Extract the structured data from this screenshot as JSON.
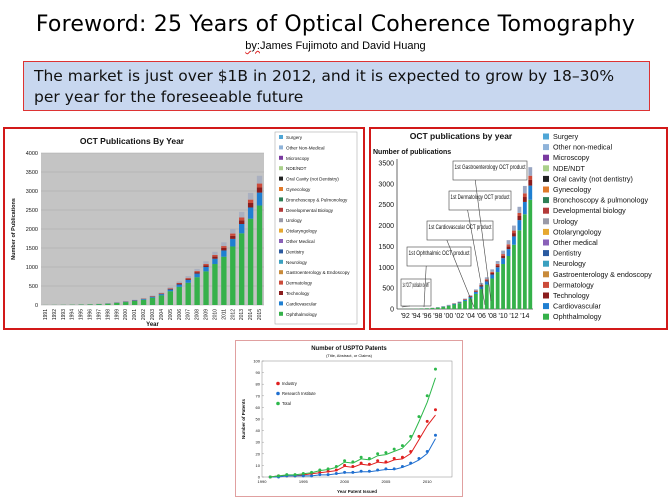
{
  "slide": {
    "title": "Foreword: 25 Years of Optical Coherence Tomography",
    "byline_by": "by:",
    "byline_rest": "James Fujimoto and David Huang",
    "market_text": "The market is just over $1B in 2012, and it is expected to grow by 18–30% per year for the foreseeable future"
  },
  "colors": {
    "border_red": "#d21919",
    "box_blue": "#c8d7ef",
    "ophthalmology": "#35b14a",
    "cardiovascular": "#1f7fd1",
    "technology": "#8b1d1d",
    "surgery": "#4fa6d6"
  },
  "chart_data": [
    {
      "type": "bar",
      "stacked": true,
      "title": "OCT Publications By Year",
      "xlabel": "Year",
      "ylabel": "Number of Publications",
      "ylim": [
        0,
        4000
      ],
      "yticks": [
        0,
        500,
        1000,
        1500,
        2000,
        2500,
        3000,
        3500,
        4000
      ],
      "grid": true,
      "legend_position": "right",
      "categories": [
        "1991",
        "1992",
        "1993",
        "1994",
        "1995",
        "1996",
        "1997",
        "1998",
        "1999",
        "2000",
        "2001",
        "2002",
        "2003",
        "2004",
        "2005",
        "2006",
        "2007",
        "2008",
        "2009",
        "2010",
        "2011",
        "2012",
        "2013",
        "2014",
        "2015"
      ],
      "totals": [
        2,
        4,
        6,
        10,
        15,
        20,
        30,
        45,
        70,
        100,
        140,
        180,
        250,
        330,
        470,
        620,
        760,
        950,
        1150,
        1400,
        1650,
        2000,
        2450,
        2950,
        3400
      ],
      "legend": [
        "Surgery",
        "Other Non-Medical",
        "Microscopy",
        "NDE/NDT",
        "Oral Cavity (not Dentistry)",
        "Gynecology",
        "Bronchoscopy & Pulmonology",
        "Developmental Biology",
        "Urology",
        "Otolaryngology",
        "Other Medical",
        "Dentistry",
        "Neurology",
        "Gastroenterology & Endoscopy",
        "Dermatology",
        "Technology",
        "Cardiovascular",
        "Ophthalmology"
      ]
    },
    {
      "type": "bar",
      "stacked": true,
      "title": "OCT publications by year",
      "ylabel": "Number of publications",
      "ylim": [
        0,
        3500
      ],
      "yticks": [
        0,
        500,
        1000,
        1500,
        2000,
        2500,
        3000,
        3500
      ],
      "xticklabels": [
        "'92",
        "'94",
        "'96",
        "'98",
        "'00",
        "'02",
        "'04",
        "'06",
        "'08",
        "'10",
        "'12",
        "'14"
      ],
      "grid": false,
      "legend_position": "right",
      "categories": [
        "1991",
        "1992",
        "1993",
        "1994",
        "1995",
        "1996",
        "1997",
        "1998",
        "1999",
        "2000",
        "2001",
        "2002",
        "2003",
        "2004",
        "2005",
        "2006",
        "2007",
        "2008",
        "2009",
        "2010",
        "2011",
        "2012",
        "2013",
        "2014",
        "2015"
      ],
      "totals": [
        2,
        4,
        6,
        10,
        15,
        20,
        30,
        45,
        70,
        100,
        140,
        180,
        250,
        330,
        470,
        620,
        760,
        950,
        1150,
        1400,
        1650,
        2000,
        2450,
        2950,
        3400
      ],
      "annotations": [
        {
          "label": "1st \"OCT\" publication by MIT",
          "year": "1991"
        },
        {
          "label": "1st Ophthalmic OCT product",
          "year": "1996"
        },
        {
          "label": "1st Cardiovascular OCT product",
          "year": "2004"
        },
        {
          "label": "1st Dermatology OCT product",
          "year": "2006"
        },
        {
          "label": "1st Gastroenterology OCT product",
          "year": "2007"
        }
      ],
      "legend": [
        "Surgery",
        "Other non-medical",
        "Microscopy",
        "NDE/NDT",
        "Oral cavity (not dentistry)",
        "Gynecology",
        "Bronchoscopy & pulmonology",
        "Developmental biology",
        "Urology",
        "Otolaryngology",
        "Other medical",
        "Dentistry",
        "Neurology",
        "Gastroenterology & endoscopy",
        "Dermatology",
        "Technology",
        "Cardiovascular",
        "Ophthalmology"
      ]
    },
    {
      "type": "scatter",
      "title": "Number of USPTO Patents",
      "subtitle": "(Title, Abstract, or Claims)",
      "xlabel": "Year Patent Issued",
      "ylabel": "Number of Patents",
      "xlim": [
        1990,
        2013
      ],
      "ylim": [
        0,
        100
      ],
      "xticks": [
        1990,
        1995,
        2000,
        2005,
        2010
      ],
      "yticks": [
        0,
        10,
        20,
        30,
        40,
        50,
        60,
        70,
        80,
        90,
        100
      ],
      "legend_position": "top-left",
      "series": [
        {
          "name": "Industry",
          "color": "#e02020",
          "x": [
            1991,
            1992,
            1993,
            1994,
            1995,
            1996,
            1997,
            1998,
            1999,
            2000,
            2001,
            2002,
            2003,
            2004,
            2005,
            2006,
            2007,
            2008,
            2009,
            2010,
            2011
          ],
          "y": [
            0,
            1,
            1,
            1,
            2,
            3,
            4,
            5,
            6,
            10,
            9,
            12,
            11,
            14,
            13,
            16,
            17,
            22,
            35,
            48,
            58
          ]
        },
        {
          "name": "Research Institute",
          "color": "#1f6fd0",
          "x": [
            1991,
            1992,
            1993,
            1994,
            1995,
            1996,
            1997,
            1998,
            1999,
            2000,
            2001,
            2002,
            2003,
            2004,
            2005,
            2006,
            2007,
            2008,
            2009,
            2010,
            2011
          ],
          "y": [
            0,
            0,
            1,
            1,
            1,
            1,
            2,
            2,
            3,
            4,
            4,
            5,
            5,
            6,
            7,
            7,
            9,
            12,
            16,
            22,
            36
          ]
        },
        {
          "name": "Total",
          "color": "#2db84b",
          "x": [
            1991,
            1992,
            1993,
            1994,
            1995,
            1996,
            1997,
            1998,
            1999,
            2000,
            2001,
            2002,
            2003,
            2004,
            2005,
            2006,
            2007,
            2008,
            2009,
            2010,
            2011
          ],
          "y": [
            0,
            1,
            2,
            2,
            3,
            4,
            6,
            7,
            9,
            14,
            13,
            17,
            16,
            20,
            21,
            24,
            27,
            35,
            52,
            70,
            93
          ]
        }
      ]
    }
  ]
}
